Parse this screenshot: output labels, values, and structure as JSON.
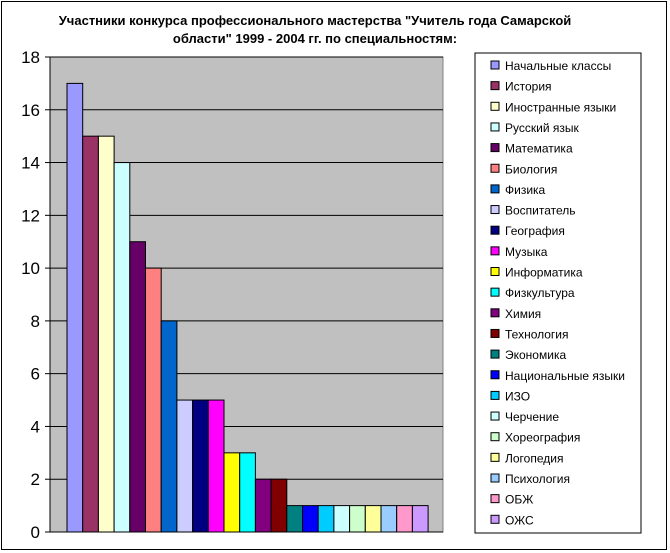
{
  "chart_data": {
    "type": "bar",
    "title": "Участники конкурса профессионального мастерства \"Учитель года Самарской области\" 1999 - 2004 гг. по специальностям:",
    "xlabel": "",
    "ylabel": "",
    "ylim": [
      0,
      18
    ],
    "yticks": [
      "0",
      "2",
      "4",
      "6",
      "8",
      "10",
      "12",
      "14",
      "16",
      "18"
    ],
    "grid": true,
    "legend_position": "right",
    "plot_background": "#c0c0c0",
    "series": [
      {
        "name": "Начальные классы",
        "value": 17,
        "color": "#9999ff"
      },
      {
        "name": "История",
        "value": 15,
        "color": "#993366"
      },
      {
        "name": "Иностранные языки",
        "value": 15,
        "color": "#ffffcc"
      },
      {
        "name": "Русский язык",
        "value": 14,
        "color": "#ccffff"
      },
      {
        "name": "Математика",
        "value": 11,
        "color": "#660066"
      },
      {
        "name": "Биология",
        "value": 10,
        "color": "#ff8080"
      },
      {
        "name": "Физика",
        "value": 8,
        "color": "#0066cc"
      },
      {
        "name": "Воспитатель",
        "value": 5,
        "color": "#ccccff"
      },
      {
        "name": "География",
        "value": 5,
        "color": "#000080"
      },
      {
        "name": "Музыка",
        "value": 5,
        "color": "#ff00ff"
      },
      {
        "name": "Информатика",
        "value": 3,
        "color": "#ffff00"
      },
      {
        "name": "Физкультура",
        "value": 3,
        "color": "#00ffff"
      },
      {
        "name": "Химия",
        "value": 2,
        "color": "#800080"
      },
      {
        "name": "Технология",
        "value": 2,
        "color": "#800000"
      },
      {
        "name": "Экономика",
        "value": 1,
        "color": "#008080"
      },
      {
        "name": "Национальные языки",
        "value": 1,
        "color": "#0000ff"
      },
      {
        "name": "ИЗО",
        "value": 1,
        "color": "#00ccff"
      },
      {
        "name": "Черчение",
        "value": 1,
        "color": "#ccffff"
      },
      {
        "name": "Хореография",
        "value": 1,
        "color": "#ccffcc"
      },
      {
        "name": "Логопедия",
        "value": 1,
        "color": "#ffff99"
      },
      {
        "name": "Психология",
        "value": 1,
        "color": "#99ccff"
      },
      {
        "name": "ОБЖ",
        "value": 1,
        "color": "#ff99cc"
      },
      {
        "name": "ОЖС",
        "value": 1,
        "color": "#cc99ff"
      }
    ]
  }
}
